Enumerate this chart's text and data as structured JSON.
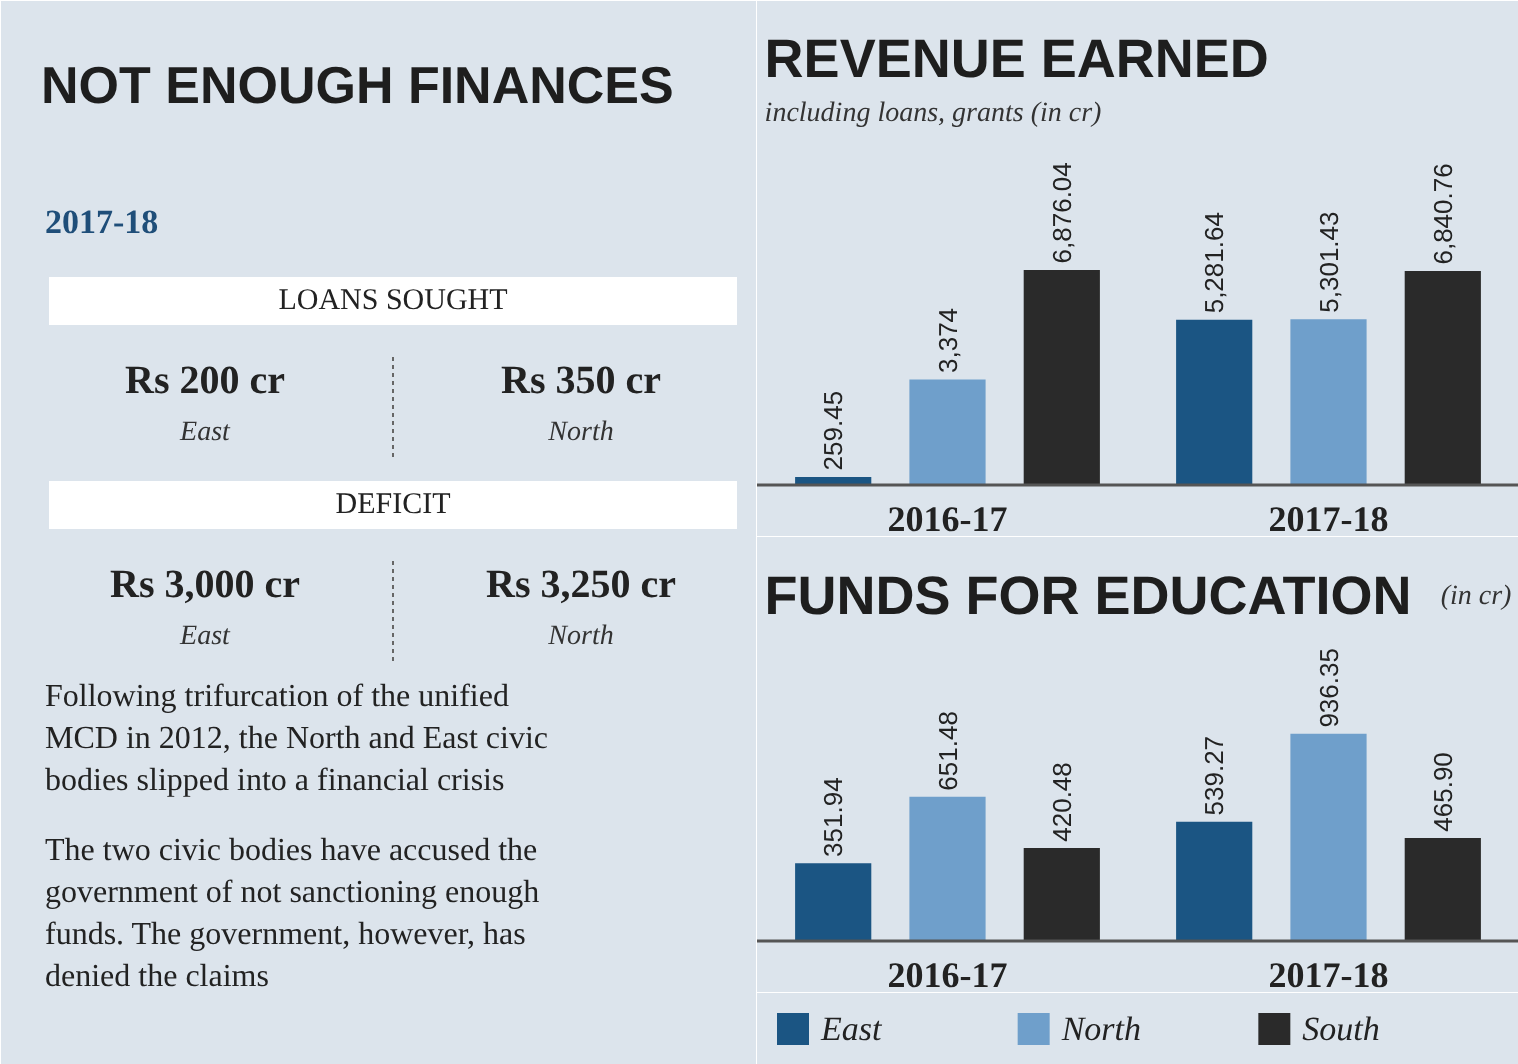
{
  "chart_data": [
    {
      "type": "other",
      "title": "NOT ENOUGH FINANCES",
      "subtitle": "2017-18",
      "annotations": [
        "LOANS SOUGHT",
        "Rs 200 cr",
        "East",
        "Rs 350 cr",
        "North",
        "DEFICIT",
        "Rs 3,000 cr",
        "East",
        "Rs 3,250 cr",
        "North",
        "Following trifurcation of the unified MCD in 2012, the North and East civic bodies slipped into a financial crisis",
        "The two civic bodies have accused the government of not sanctioning enough funds. The government, however, has denied the claims"
      ]
    },
    {
      "type": "bar",
      "title": "REVENUE EARNED",
      "subtitle": "including loans, grants (in cr)",
      "categories": [
        "2016-17",
        "2017-18"
      ],
      "series": [
        {
          "color": "#1b5583",
          "values": [
            259.45,
            5281.64
          ],
          "value_labels": [
            "259.45",
            "5,281.64"
          ]
        },
        {
          "color": "#6f9fcb",
          "values": [
            3374,
            5301.43
          ],
          "value_labels": [
            "3,374",
            "5,301.43"
          ]
        },
        {
          "color": "#2a2a2a",
          "values": [
            6876.04,
            6840.76
          ],
          "value_labels": [
            "6,876.04",
            "6,840.76"
          ]
        }
      ]
    },
    {
      "type": "bar",
      "title": "FUNDS FOR EDUCATION",
      "subtitle": "(in cr)",
      "categories": [
        "2016-17",
        "2017-18"
      ],
      "legend": "bottom",
      "series": [
        {
          "name": "East",
          "color": "#1b5583",
          "values": [
            351.94,
            539.27
          ],
          "value_labels": [
            "351.94",
            "539.27"
          ]
        },
        {
          "name": "North",
          "color": "#6f9fcb",
          "values": [
            651.48,
            936.35
          ],
          "value_labels": [
            "651.48",
            "936.35"
          ]
        },
        {
          "name": "South",
          "color": "#2a2a2a",
          "values": [
            420.48,
            465.9
          ],
          "value_labels": [
            "420.48",
            "465.90"
          ]
        }
      ]
    }
  ]
}
